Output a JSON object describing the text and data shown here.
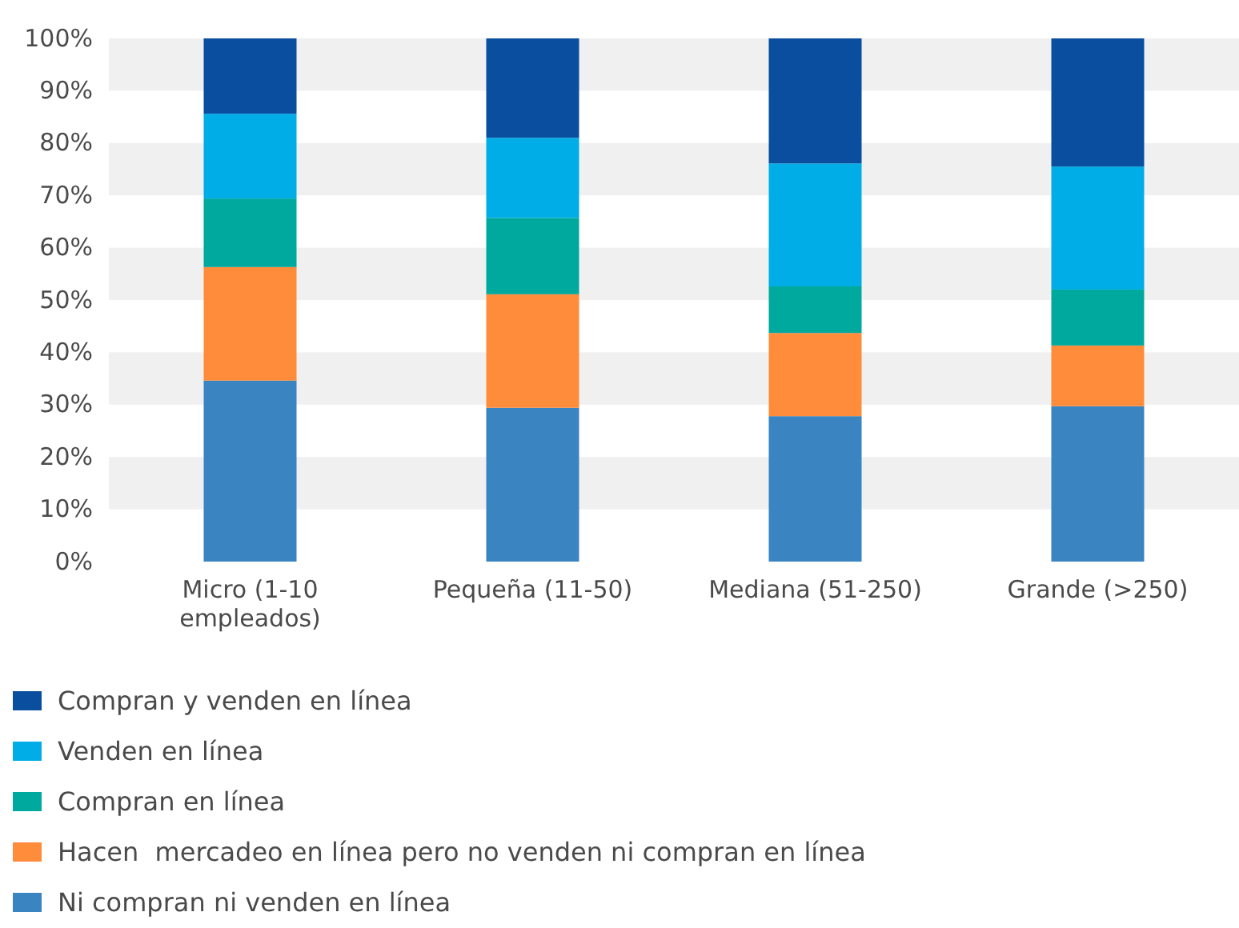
{
  "chart_data": {
    "type": "bar",
    "stacked": true,
    "categories": [
      "Micro (1-10 empleados)",
      "Pequeña (11-50)",
      "Mediana (51-250)",
      "Grande (>250)"
    ],
    "series": [
      {
        "name": "Ni compran ni venden en línea",
        "color": "#3a84c1",
        "values": [
          34.6,
          29.4,
          27.8,
          29.7
        ]
      },
      {
        "name": "Hacen  mercadeo en línea pero no venden ni compran en línea",
        "color": "#fe8c3a",
        "values": [
          21.7,
          21.7,
          15.9,
          11.6
        ]
      },
      {
        "name": "Compran en línea",
        "color": "#00a99d",
        "values": [
          13.1,
          14.6,
          8.9,
          10.7
        ]
      },
      {
        "name": "Venden en línea",
        "color": "#00ade6",
        "values": [
          16.2,
          15.3,
          23.5,
          23.5
        ]
      },
      {
        "name": "Compran y venden en línea",
        "color": "#0a4e9f",
        "values": [
          14.4,
          19.0,
          23.9,
          24.5
        ]
      }
    ],
    "ylim": [
      0,
      100
    ],
    "yticks": [
      {
        "value": 0,
        "label": "0%"
      },
      {
        "value": 10,
        "label": "10%"
      },
      {
        "value": 20,
        "label": "20%"
      },
      {
        "value": 30,
        "label": "30%"
      },
      {
        "value": 40,
        "label": "40%"
      },
      {
        "value": 50,
        "label": "50%"
      },
      {
        "value": 60,
        "label": "60%"
      },
      {
        "value": 70,
        "label": "70%"
      },
      {
        "value": 80,
        "label": "80%"
      },
      {
        "value": 90,
        "label": "90%"
      },
      {
        "value": 100,
        "label": "100%"
      }
    ],
    "legend": "bottom"
  }
}
